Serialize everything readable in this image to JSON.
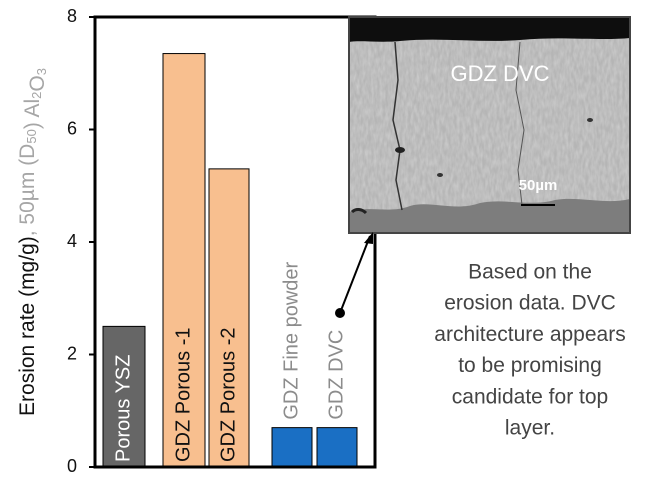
{
  "chart_data": {
    "type": "bar",
    "y_label": "Erosion rate (mg/g)",
    "y_label_note": [
      ", 50µm (D",
      "50",
      ") Al",
      "2",
      "O",
      "3"
    ],
    "categories": [
      "Porous YSZ",
      "GDZ Porous -1",
      "GDZ Porous -2",
      "GDZ Fine powder",
      "GDZ DVC"
    ],
    "values": [
      2.5,
      7.35,
      5.3,
      0.7,
      0.7
    ],
    "colors": [
      "#666666",
      "#f8bf8f",
      "#f8bf8f",
      "#1a6fc4",
      "#1a6fc4"
    ],
    "label_colors": [
      "#ffffff",
      "#111111",
      "#111111",
      "#8c8c8c",
      "#8c8c8c"
    ],
    "ylim": [
      0,
      8
    ],
    "yticks": [
      0,
      2,
      4,
      6,
      8
    ],
    "inset": {
      "title": "GDZ DVC",
      "scale_label": "50µm"
    },
    "annotation": [
      "Based on the",
      "erosion data. DVC",
      "architecture appears",
      "to be promising",
      "candidate for top",
      "layer."
    ]
  }
}
